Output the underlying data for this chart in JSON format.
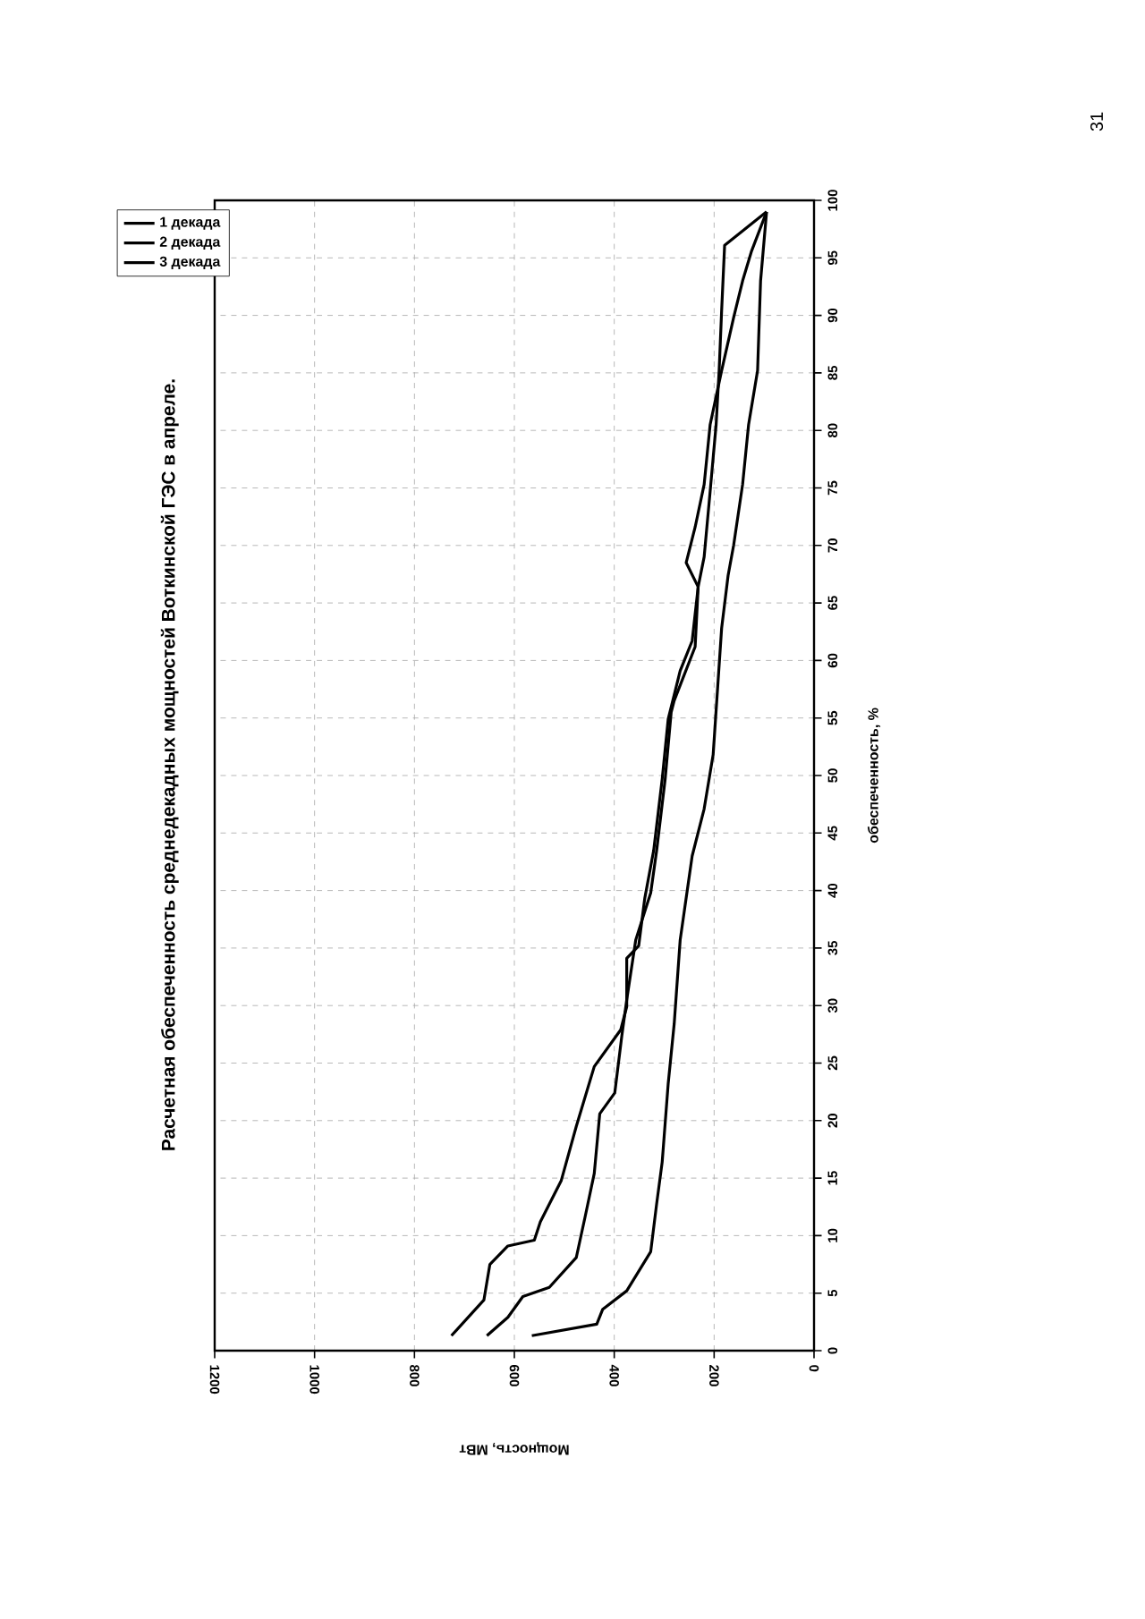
{
  "chart_data": {
    "type": "line",
    "title": "Расчетная обеспеченность среднедекадных мощностей Воткинской ГЭС в апреле.",
    "xlabel": "Мощность, МВт",
    "ylabel": "обеспеченность, %",
    "annotations": [
      "31"
    ],
    "xlim": [
      1200,
      0
    ],
    "xticks": [
      1200,
      1000,
      800,
      600,
      400,
      200,
      0
    ],
    "ylim": [
      0,
      100
    ],
    "yticks": [
      0,
      5,
      10,
      15,
      20,
      25,
      30,
      35,
      40,
      45,
      50,
      55,
      60,
      65,
      70,
      75,
      80,
      85,
      90,
      95,
      100
    ],
    "grid": true,
    "legend": "top left",
    "line_style": "solid",
    "marker": "none",
    "series": [
      {
        "name": "1 декада",
        "color": "#000000",
        "values": [
          1.3,
          4.4,
          7.5,
          9.1,
          9.6,
          11.2,
          14.8,
          19.5,
          24.7,
          27.9,
          29.9,
          34.1,
          35.2,
          39.3,
          43.5,
          49.7,
          54.9,
          59.1,
          61.7,
          66.4,
          68.5,
          71.6,
          75.3,
          80.5,
          85.2,
          89.8,
          93,
          95.6,
          99
        ],
        "x": [
          726,
          661,
          649,
          613,
          560,
          548,
          506,
          476,
          440,
          387,
          375,
          375,
          351,
          339,
          321,
          304,
          292,
          268,
          244,
          232,
          256,
          238,
          220,
          208,
          185,
          161,
          143,
          125,
          95
        ]
      },
      {
        "name": "2 декада",
        "color": "#000000",
        "values": [
          1.3,
          2.9,
          4.7,
          5.5,
          8.1,
          11.7,
          15.4,
          20.6,
          22.4,
          27.3,
          30.5,
          35.7,
          39.8,
          43.5,
          49.7,
          55.5,
          56.5,
          61.2,
          66.4,
          69,
          74.7,
          80.5,
          85.2,
          90.4,
          96.1,
          99
        ],
        "x": [
          655,
          613,
          583,
          530,
          476,
          458,
          440,
          429,
          399,
          385,
          375,
          357,
          327,
          315,
          298,
          286,
          280,
          238,
          232,
          220,
          208,
          196,
          190,
          185,
          179,
          95
        ]
      },
      {
        "name": "3 декада",
        "color": "#000000",
        "values": [
          1.3,
          2.3,
          3.6,
          5.2,
          8.6,
          12.8,
          16.4,
          23.2,
          28.4,
          35.7,
          43,
          47.1,
          51.8,
          62.8,
          67.4,
          70,
          75.3,
          80.5,
          85.2,
          93,
          99
        ],
        "x": [
          565,
          435,
          423,
          375,
          327,
          315,
          304,
          292,
          280,
          268,
          244,
          220,
          202,
          185,
          172,
          161,
          143,
          131,
          113,
          107,
          95
        ]
      }
    ]
  }
}
